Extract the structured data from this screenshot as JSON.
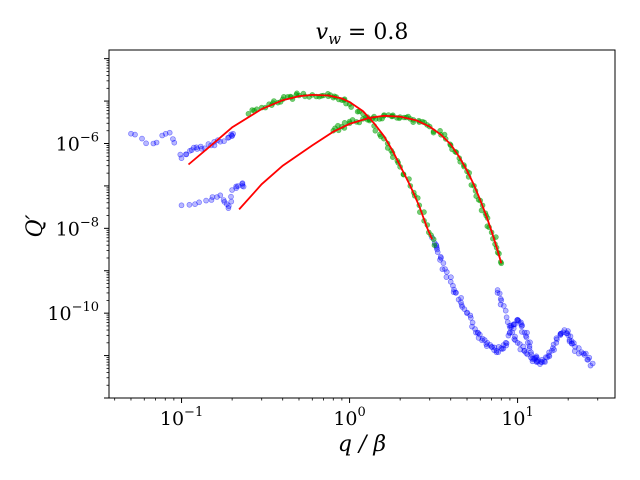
{
  "chart_data": {
    "type": "scatter",
    "title": "v_w = 0.8",
    "title_main": "v",
    "title_sub": "w",
    "title_rest": " = 0.8",
    "xlabel": "q / β",
    "ylabel": "Q′",
    "xscale": "log",
    "yscale": "log",
    "xlim": [
      0.037,
      38
    ],
    "ylim": [
      1e-12,
      0.00016
    ],
    "x_ticks": [
      {
        "value": 0.1,
        "base": "10",
        "exp": "−1"
      },
      {
        "value": 1,
        "base": "10",
        "exp": "0"
      },
      {
        "value": 10,
        "base": "10",
        "exp": "1"
      }
    ],
    "y_ticks": [
      {
        "value": 1e-10,
        "base": "10",
        "exp": "−10"
      },
      {
        "value": 1e-08,
        "base": "10",
        "exp": "−8"
      },
      {
        "value": 1e-06,
        "base": "10",
        "exp": "−6"
      }
    ],
    "series": [
      {
        "name": "spectrum A (blue markers)",
        "color": "#0000ff",
        "points": [
          [
            0.05,
            1.7e-06
          ],
          [
            0.068,
            1e-06
          ],
          [
            0.085,
            1.8e-06
          ],
          [
            0.1,
            4.5e-07
          ],
          [
            0.115,
            7e-07
          ],
          [
            0.13,
            8.5e-07
          ],
          [
            0.15,
            9e-07
          ],
          [
            0.17,
            1.1e-06
          ],
          [
            0.2,
            1.5e-06
          ],
          [
            3.1,
            6e-09
          ],
          [
            3.3,
            3.5e-09
          ],
          [
            3.5,
            2e-09
          ],
          [
            3.7,
            1.1e-09
          ],
          [
            4.0,
            5.5e-10
          ],
          [
            4.3,
            3e-10
          ],
          [
            4.6,
            1.8e-10
          ],
          [
            5.0,
            1e-10
          ],
          [
            5.4,
            6e-11
          ],
          [
            5.8,
            3.5e-11
          ],
          [
            6.2,
            2.5e-11
          ],
          [
            6.6,
            2e-11
          ],
          [
            7.0,
            1.6e-11
          ],
          [
            7.5,
            1.3e-11
          ],
          [
            8.0,
            1.5e-11
          ],
          [
            8.5,
            2e-11
          ],
          [
            9.0,
            3.5e-11
          ],
          [
            9.5,
            5.5e-11
          ],
          [
            10,
            7e-11
          ],
          [
            10.5,
            5.5e-11
          ],
          [
            11,
            3.5e-11
          ],
          [
            11.5,
            2e-11
          ],
          [
            12,
            1.2e-11
          ],
          [
            13,
            9e-12
          ],
          [
            14,
            8e-12
          ]
        ]
      },
      {
        "name": "spectrum B (blue markers)",
        "color": "#0000ff",
        "points": [
          [
            0.1,
            3.5e-08
          ],
          [
            0.14,
            4.5e-08
          ],
          [
            0.17,
            6e-08
          ],
          [
            0.19,
            3e-08
          ],
          [
            0.2,
            8e-08
          ],
          [
            0.23,
            1e-07
          ],
          [
            7.6,
            3.5e-10
          ],
          [
            8.0,
            2e-10
          ],
          [
            8.6,
            8e-11
          ],
          [
            9.3,
            3.5e-11
          ],
          [
            10,
            2e-11
          ],
          [
            11,
            1.3e-11
          ],
          [
            12,
            9e-12
          ],
          [
            13,
            7e-12
          ],
          [
            14,
            7e-12
          ],
          [
            15,
            9e-12
          ],
          [
            16,
            1.3e-11
          ],
          [
            17,
            2e-11
          ],
          [
            18,
            3.2e-11
          ],
          [
            19,
            4e-11
          ],
          [
            20,
            3e-11
          ],
          [
            21,
            2.2e-11
          ],
          [
            22,
            1.6e-11
          ],
          [
            24,
            1.2e-11
          ],
          [
            26,
            8e-12
          ],
          [
            28,
            6.5e-12
          ]
        ]
      },
      {
        "name": "spectrum A (green markers)",
        "color": "#00a000",
        "points": [
          [
            0.25,
            5e-06
          ],
          [
            0.3,
            7e-06
          ],
          [
            0.35,
            9e-06
          ],
          [
            0.4,
            1.1e-05
          ],
          [
            0.45,
            1.25e-05
          ],
          [
            0.5,
            1.35e-05
          ],
          [
            0.6,
            1.4e-05
          ],
          [
            0.7,
            1.35e-05
          ],
          [
            0.8,
            1.2e-05
          ],
          [
            0.9,
            1.05e-05
          ],
          [
            1.0,
            8.5e-06
          ],
          [
            1.2,
            5e-06
          ],
          [
            1.4,
            2.6e-06
          ],
          [
            1.6,
            1.3e-06
          ],
          [
            1.8,
            6e-07
          ],
          [
            2.0,
            2.8e-07
          ],
          [
            2.3,
            1e-07
          ],
          [
            2.6,
            3.5e-08
          ],
          [
            2.9,
            1.2e-08
          ],
          [
            3.2,
            4e-09
          ]
        ]
      },
      {
        "name": "spectrum B (green markers)",
        "color": "#00a000",
        "points": [
          [
            0.8,
            2e-06
          ],
          [
            0.9,
            2.5e-06
          ],
          [
            1.0,
            3e-06
          ],
          [
            1.2,
            3.8e-06
          ],
          [
            1.4,
            4.3e-06
          ],
          [
            1.6,
            4.5e-06
          ],
          [
            1.8,
            4.4e-06
          ],
          [
            2.0,
            4.2e-06
          ],
          [
            2.3,
            3.8e-06
          ],
          [
            2.6,
            3.2e-06
          ],
          [
            3.0,
            2.5e-06
          ],
          [
            3.5,
            1.6e-06
          ],
          [
            4.0,
            9e-07
          ],
          [
            4.5,
            4.5e-07
          ],
          [
            5.0,
            2.2e-07
          ],
          [
            5.5,
            1e-07
          ],
          [
            6.0,
            4.5e-08
          ],
          [
            6.5,
            2e-08
          ],
          [
            7.0,
            8e-09
          ],
          [
            7.5,
            3.5e-09
          ],
          [
            8.0,
            1.5e-09
          ]
        ]
      },
      {
        "name": "fit A (red line)",
        "color": "#ff0000",
        "line": [
          [
            0.11,
            3.2e-07
          ],
          [
            0.15,
            9e-07
          ],
          [
            0.2,
            2.4e-06
          ],
          [
            0.3,
            6.5e-06
          ],
          [
            0.4,
            1.05e-05
          ],
          [
            0.5,
            1.3e-05
          ],
          [
            0.6,
            1.4e-05
          ],
          [
            0.75,
            1.35e-05
          ],
          [
            0.9,
            1.15e-05
          ],
          [
            1.0,
            9.5e-06
          ],
          [
            1.2,
            5.8e-06
          ],
          [
            1.4,
            3e-06
          ],
          [
            1.6,
            1.5e-06
          ],
          [
            1.8,
            6.8e-07
          ],
          [
            2.0,
            3e-07
          ],
          [
            2.3,
            1e-07
          ],
          [
            2.6,
            3.3e-08
          ],
          [
            2.9,
            1e-08
          ],
          [
            3.1,
            5.5e-09
          ]
        ]
      },
      {
        "name": "fit B (red line)",
        "color": "#ff0000",
        "line": [
          [
            0.22,
            2.8e-08
          ],
          [
            0.3,
            1.1e-07
          ],
          [
            0.4,
            3e-07
          ],
          [
            0.6,
            9e-07
          ],
          [
            0.8,
            1.9e-06
          ],
          [
            1.0,
            2.9e-06
          ],
          [
            1.3,
            4e-06
          ],
          [
            1.6,
            4.5e-06
          ],
          [
            2.0,
            4.3e-06
          ],
          [
            2.5,
            3.5e-06
          ],
          [
            3.0,
            2.5e-06
          ],
          [
            3.5,
            1.6e-06
          ],
          [
            4.0,
            9.5e-07
          ],
          [
            4.5,
            4.8e-07
          ],
          [
            5.0,
            2.3e-07
          ],
          [
            5.5,
            1.05e-07
          ],
          [
            6.0,
            4.6e-08
          ],
          [
            6.5,
            2e-08
          ],
          [
            7.0,
            8.5e-09
          ],
          [
            7.5,
            3.6e-09
          ],
          [
            8.0,
            1.5e-09
          ]
        ]
      }
    ]
  }
}
